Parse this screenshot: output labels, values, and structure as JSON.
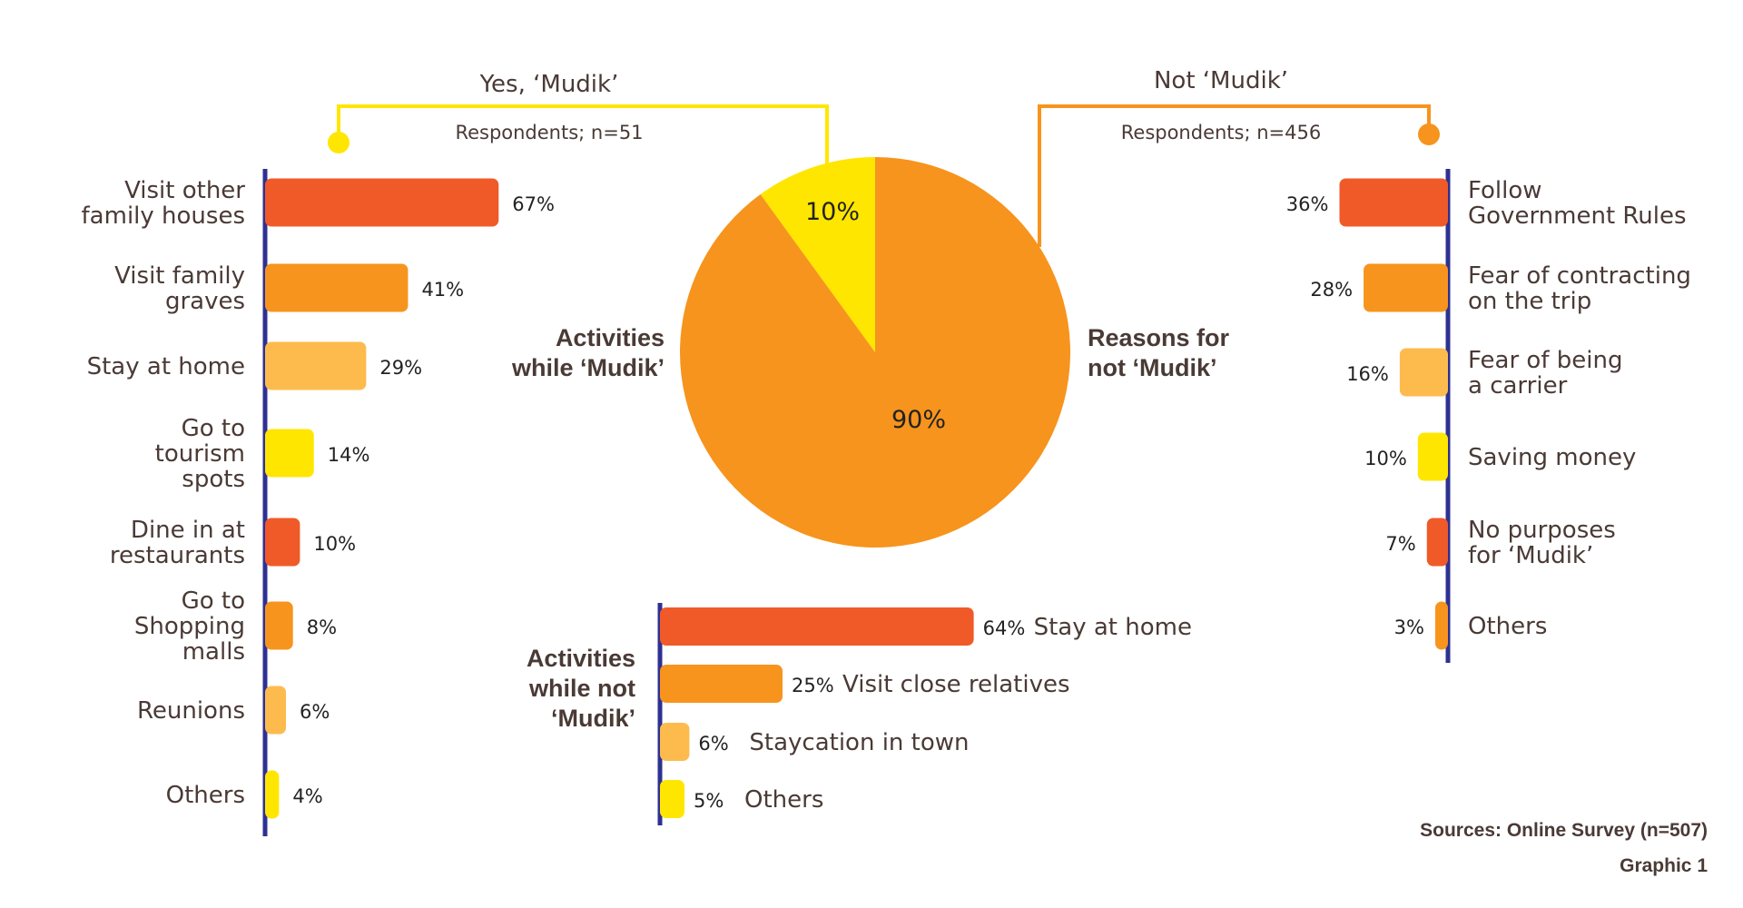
{
  "colors": {
    "red": "#f05a28",
    "orange": "#f7941d",
    "light_orange": "#fdbb4e",
    "yellow": "#ffe600",
    "axis": "#2e3192",
    "text": "#4a3a35"
  },
  "header": {
    "yes_label": "Yes, ‘Mudik’",
    "no_label": "Not ‘Mudik’",
    "yes_respondents": "Respondents; n=51",
    "no_respondents": "Respondents; n=456"
  },
  "titles": {
    "activities_mudik_1": "Activities",
    "activities_mudik_2": "while ‘Mudik’",
    "reasons_1": "Reasons for",
    "reasons_2": "not ‘Mudik’",
    "activities_not_1": "Activities",
    "activities_not_2": "while not",
    "activities_not_3": "‘Mudik’"
  },
  "footer": {
    "source": "Sources: Online Survey (n=507)",
    "graphic": "Graphic 1"
  },
  "chart_data": [
    {
      "type": "pie",
      "slices": [
        {
          "label": "Yes, ‘Mudik’",
          "value": 10,
          "display": "10%",
          "color": "#ffe600"
        },
        {
          "label": "Not ‘Mudik’",
          "value": 90,
          "display": "90%",
          "color": "#f7941d"
        }
      ]
    },
    {
      "type": "bar",
      "orientation": "horizontal",
      "title": "Activities while ‘Mudik’",
      "categories": [
        [
          "Visit other",
          "family houses"
        ],
        [
          "Visit family",
          "graves"
        ],
        [
          "Stay at home"
        ],
        [
          "Go to",
          "tourism",
          "spots"
        ],
        [
          "Dine in at",
          "restaurants"
        ],
        [
          "Go to",
          "Shopping",
          "malls"
        ],
        [
          "Reunions"
        ],
        [
          "Others"
        ]
      ],
      "values": [
        67,
        41,
        29,
        14,
        10,
        8,
        6,
        4
      ],
      "value_labels": [
        "67%",
        "41%",
        "29%",
        "14%",
        "10%",
        "8%",
        "6%",
        "4%"
      ],
      "colors": [
        "#f05a28",
        "#f7941d",
        "#fdbb4e",
        "#ffe600",
        "#f05a28",
        "#f7941d",
        "#fdbb4e",
        "#ffe600"
      ]
    },
    {
      "type": "bar",
      "orientation": "horizontal",
      "title": "Reasons for not ‘Mudik’",
      "categories": [
        [
          "Follow",
          "Government Rules"
        ],
        [
          "Fear of contracting",
          "on the trip"
        ],
        [
          "Fear of being",
          "a carrier"
        ],
        [
          "Saving money"
        ],
        [
          "No purposes",
          "for ‘Mudik’"
        ],
        [
          "Others"
        ]
      ],
      "values": [
        36,
        28,
        16,
        10,
        7,
        3
      ],
      "value_labels": [
        "36%",
        "28%",
        "16%",
        "10%",
        "7%",
        "3%"
      ],
      "colors": [
        "#f05a28",
        "#f7941d",
        "#fdbb4e",
        "#ffe600",
        "#f05a28",
        "#f7941d"
      ]
    },
    {
      "type": "bar",
      "orientation": "horizontal",
      "title": "Activities while not ‘Mudik’",
      "categories": [
        "Stay at home",
        "Visit close relatives",
        "Staycation in town",
        "Others"
      ],
      "values": [
        64,
        25,
        6,
        5
      ],
      "value_labels": [
        "64%",
        "25%",
        "6%",
        "5%"
      ],
      "colors": [
        "#f05a28",
        "#f7941d",
        "#fdbb4e",
        "#ffe600"
      ]
    }
  ]
}
